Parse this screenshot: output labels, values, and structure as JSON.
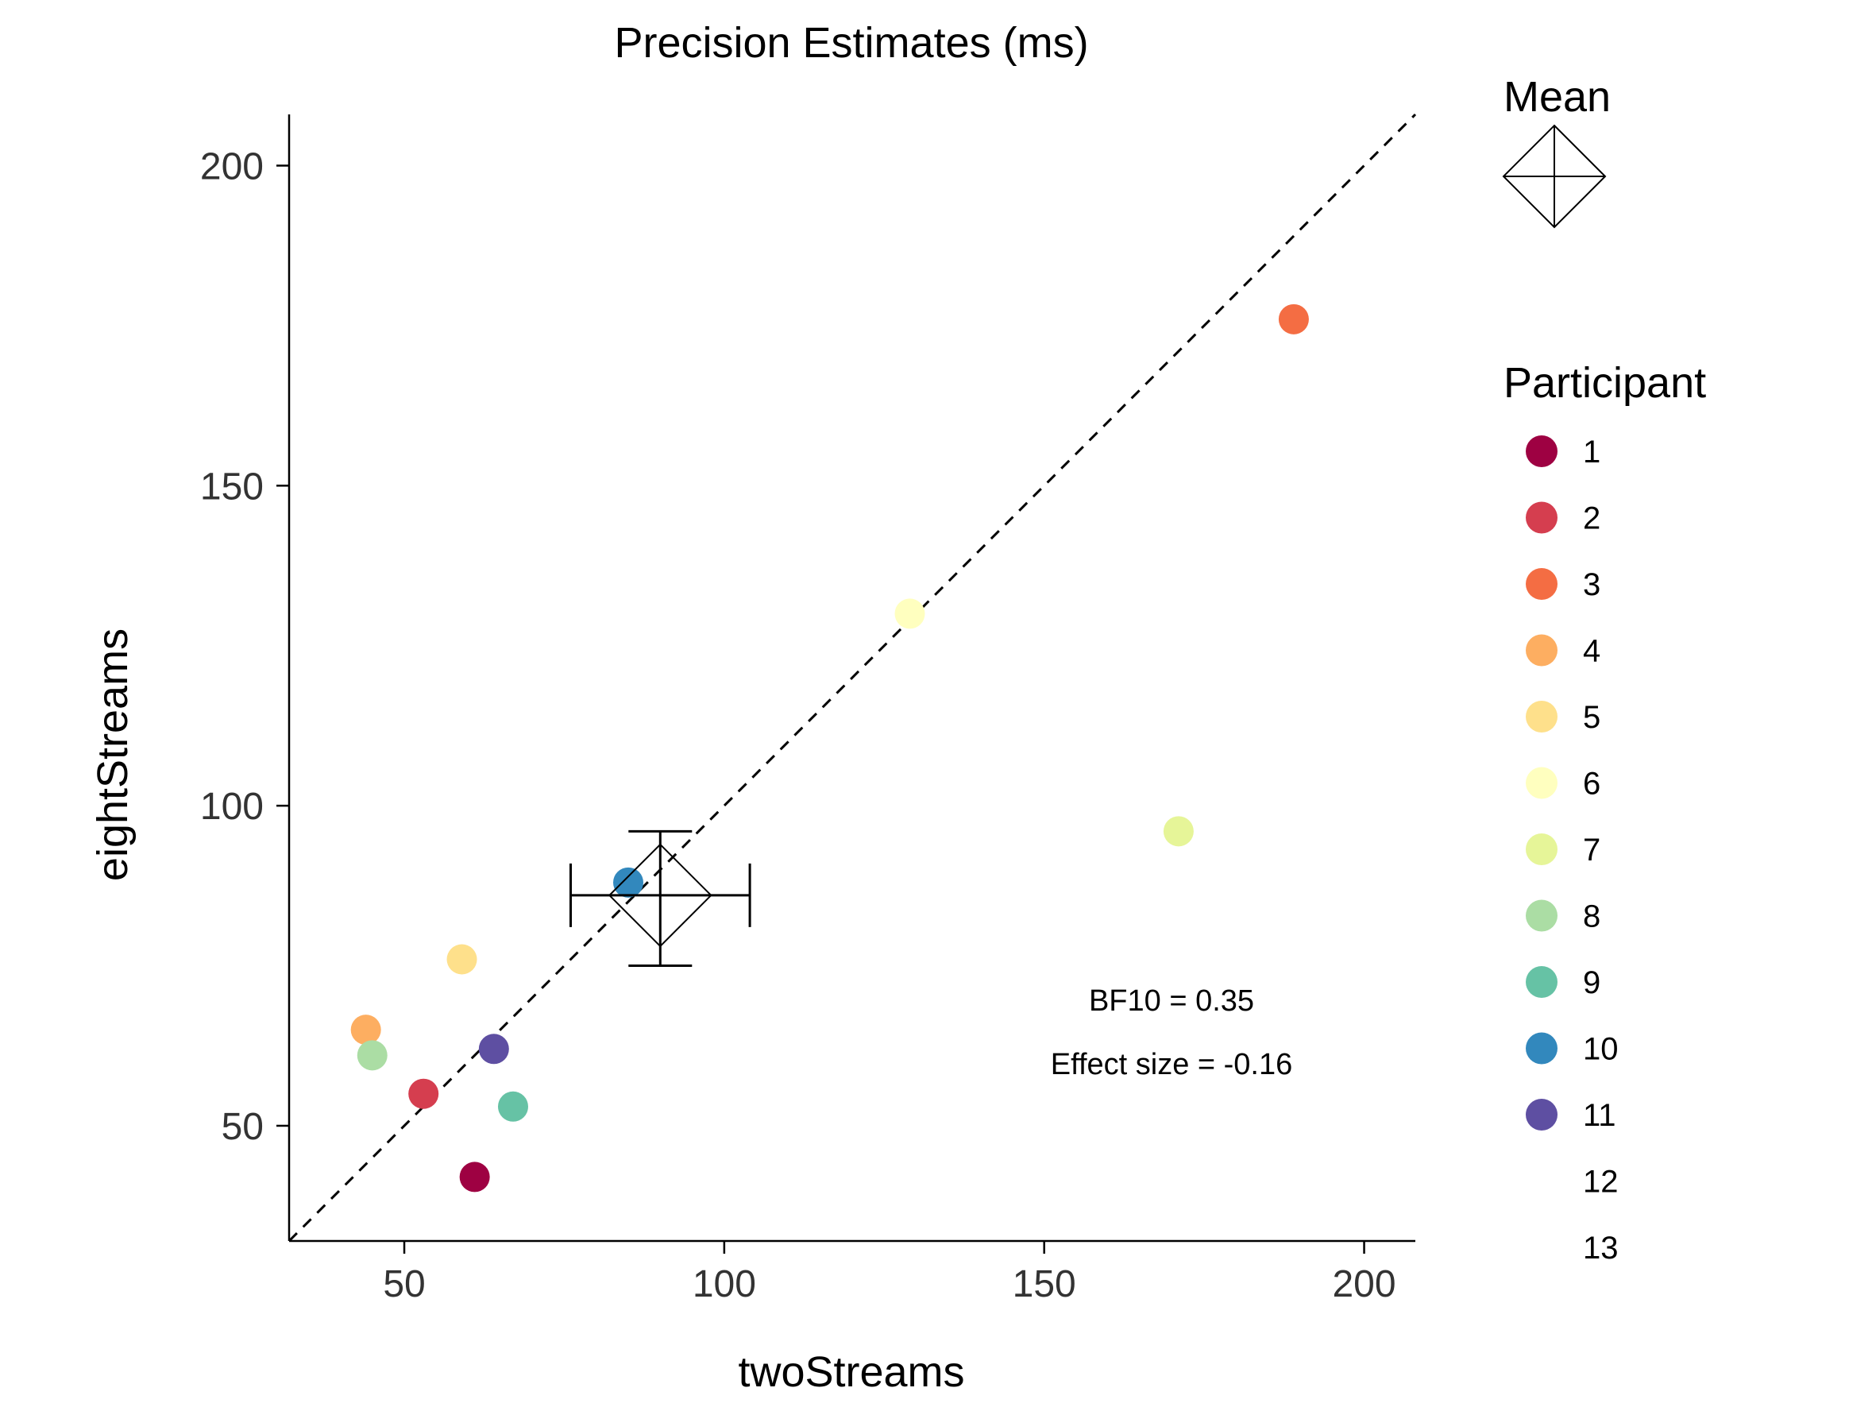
{
  "chart_data": {
    "type": "scatter",
    "title": "Precision Estimates (ms)",
    "xlabel": "twoStreams",
    "ylabel": "eightStreams",
    "xlim": [
      32,
      208
    ],
    "ylim": [
      32,
      208
    ],
    "xticks": [
      50,
      100,
      150,
      200
    ],
    "yticks": [
      50,
      100,
      150,
      200
    ],
    "grid": false,
    "reference_line": "identity (dashed)",
    "points": [
      {
        "participant": "1",
        "x": 61,
        "y": 42,
        "color": "#9e0142"
      },
      {
        "participant": "2",
        "x": 53,
        "y": 55,
        "color": "#d53e4f"
      },
      {
        "participant": "3",
        "x": 189,
        "y": 176,
        "color": "#f46d43"
      },
      {
        "participant": "4",
        "x": 44,
        "y": 65,
        "color": "#fdae61"
      },
      {
        "participant": "5",
        "x": 59,
        "y": 76,
        "color": "#fee08b"
      },
      {
        "participant": "6",
        "x": 129,
        "y": 130,
        "color": "#ffffbf"
      },
      {
        "participant": "7",
        "x": 171,
        "y": 96,
        "color": "#e6f598"
      },
      {
        "participant": "8",
        "x": 45,
        "y": 61,
        "color": "#abdda4"
      },
      {
        "participant": "9",
        "x": 67,
        "y": 53,
        "color": "#66c2a5"
      },
      {
        "participant": "10",
        "x": 85,
        "y": 88,
        "color": "#3288bd"
      },
      {
        "participant": "11",
        "x": 64,
        "y": 62,
        "color": "#5e4fa2"
      }
    ],
    "mean": {
      "x": 90,
      "y": 86,
      "x_err": [
        76,
        104
      ],
      "y_err": [
        75,
        96
      ]
    },
    "annotations": [
      "BF10 = 0.35",
      "Effect size = -0.16"
    ],
    "legend": {
      "placement": "right",
      "mean_title": "Mean",
      "title": "Participant",
      "entries": [
        {
          "label": "1",
          "color": "#9e0142"
        },
        {
          "label": "2",
          "color": "#d53e4f"
        },
        {
          "label": "3",
          "color": "#f46d43"
        },
        {
          "label": "4",
          "color": "#fdae61"
        },
        {
          "label": "5",
          "color": "#fee08b"
        },
        {
          "label": "6",
          "color": "#ffffbf"
        },
        {
          "label": "7",
          "color": "#e6f598"
        },
        {
          "label": "8",
          "color": "#abdda4"
        },
        {
          "label": "9",
          "color": "#66c2a5"
        },
        {
          "label": "10",
          "color": "#3288bd"
        },
        {
          "label": "11",
          "color": "#5e4fa2"
        },
        {
          "label": "12",
          "color": ""
        },
        {
          "label": "13",
          "color": ""
        }
      ]
    }
  }
}
